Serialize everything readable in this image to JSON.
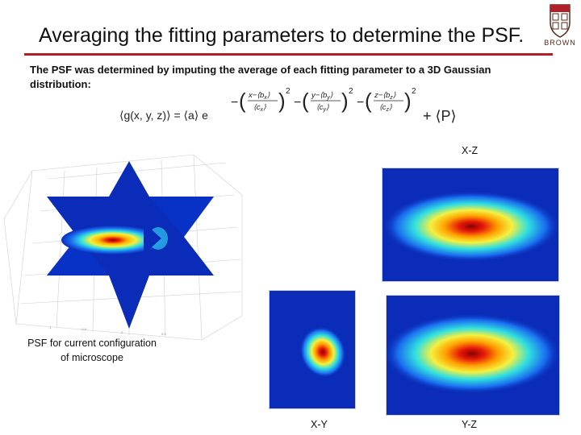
{
  "slide": {
    "title": "Averaging the fitting parameters to determine the PSF.",
    "intro": "The PSF was determined by imputing the average of each fitting parameter to a 3D Gaussian distribution:",
    "logo_text": "BROWN"
  },
  "equation": {
    "lhs": "⟨g(x, y, z)⟩ = ⟨a⟩ e",
    "x_num": "x−⟨b",
    "x_sub": "x",
    "x_den": "⟨c",
    "y_num": "y−⟨b",
    "y_sub": "y",
    "y_den": "⟨c",
    "z_num": "z−⟨b",
    "z_sub": "z",
    "z_den": "⟨c",
    "close": "⟩",
    "power": "2",
    "minus": "−",
    "plus_p": "+ ⟨P⟩"
  },
  "captions": {
    "psf": "PSF for current configuration of microscope",
    "psf_line1": "PSF for current configuration",
    "psf_line2": "of microscope",
    "xz": "X-Z",
    "xy": "X-Y",
    "yz": "Y-Z"
  },
  "colors": {
    "background_blue": "#0a2cb8",
    "rule": "#b0202a",
    "jet_red": "#c81010"
  }
}
